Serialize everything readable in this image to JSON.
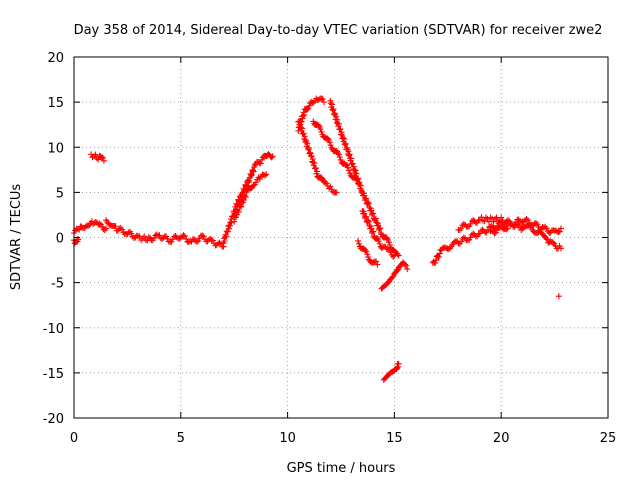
{
  "chart_data": {
    "type": "scatter",
    "title": "Day 358 of 2014, Sidereal Day-to-day VTEC variation (SDTVAR) for receiver zwe2",
    "xlabel": "GPS time / hours",
    "ylabel": "SDTVAR / TECUs",
    "xlim": [
      0,
      25
    ],
    "ylim": [
      -20,
      20
    ],
    "x_ticks": [
      0,
      5,
      10,
      15,
      20,
      25
    ],
    "y_ticks": [
      -20,
      -15,
      -10,
      -5,
      0,
      5,
      10,
      15,
      20
    ],
    "grid": true,
    "marker": "+",
    "series": [
      {
        "name": "SDTVAR",
        "color": "#ff0000",
        "segments": [
          {
            "x": [
              0.0,
              0.3,
              0.6,
              0.9,
              1.2,
              1.5
            ],
            "y": [
              0.5,
              1.0,
              1.5,
              1.6,
              1.3,
              1.0
            ]
          },
          {
            "x": [
              0.0,
              0.1,
              0.2
            ],
            "y": [
              -0.3,
              -0.6,
              -0.2
            ]
          },
          {
            "x": [
              0.8,
              1.0,
              1.2,
              1.4
            ],
            "y": [
              9.2,
              9.0,
              8.8,
              8.5
            ]
          },
          {
            "x": [
              1.5,
              2.0,
              2.5,
              3.0,
              3.5,
              4.0,
              4.5,
              5.0,
              5.5,
              6.0,
              6.5,
              7.0
            ],
            "y": [
              2.0,
              1.0,
              0.5,
              0.0,
              -0.2,
              0.2,
              -0.3,
              0.2,
              -0.5,
              0.0,
              -0.5,
              -1.0
            ]
          },
          {
            "x": [
              7.0,
              7.3,
              7.6,
              7.9,
              8.2,
              8.5,
              8.8,
              9.1,
              9.3
            ],
            "y": [
              -0.5,
              1.5,
              3.5,
              5.0,
              6.5,
              8.0,
              8.5,
              9.5,
              9.0
            ]
          },
          {
            "x": [
              7.5,
              7.8,
              8.1,
              8.4,
              8.7,
              9.0
            ],
            "y": [
              2.0,
              3.5,
              5.0,
              6.0,
              6.5,
              7.0
            ]
          },
          {
            "x": [
              10.5,
              10.8,
              11.1,
              11.4,
              11.7
            ],
            "y": [
              12.0,
              14.0,
              15.0,
              15.5,
              15.0
            ]
          },
          {
            "x": [
              10.5,
              10.8,
              11.1,
              11.4,
              11.7,
              12.0,
              12.3
            ],
            "y": [
              13.0,
              11.0,
              9.0,
              7.0,
              6.0,
              5.5,
              5.0
            ]
          },
          {
            "x": [
              11.2,
              11.5,
              11.8,
              12.1,
              12.4,
              12.7,
              13.0,
              13.3
            ],
            "y": [
              13.0,
              12.0,
              11.0,
              10.0,
              9.0,
              8.0,
              7.0,
              6.0
            ]
          },
          {
            "x": [
              12.0,
              12.3,
              12.6,
              12.9,
              13.2,
              13.5,
              13.8,
              14.1,
              14.4,
              14.7,
              15.0,
              15.2
            ],
            "y": [
              15.0,
              13.0,
              11.0,
              9.0,
              7.0,
              5.0,
              3.5,
              2.0,
              0.5,
              -0.5,
              -1.5,
              -2.0
            ]
          },
          {
            "x": [
              13.5,
              13.8,
              14.1,
              14.4,
              14.7,
              15.0
            ],
            "y": [
              3.0,
              1.5,
              0.0,
              -1.0,
              -1.5,
              -2.0
            ]
          },
          {
            "x": [
              13.3,
              13.6,
              13.9,
              14.2
            ],
            "y": [
              -0.5,
              -1.5,
              -2.5,
              -3.0
            ]
          },
          {
            "x": [
              14.4,
              14.6,
              14.8,
              15.0,
              15.2
            ],
            "y": [
              -5.5,
              -5.0,
              -4.5,
              -4.0,
              -3.5
            ]
          },
          {
            "x": [
              15.0,
              15.2,
              15.4,
              15.6
            ],
            "y": [
              -4.0,
              -3.5,
              -3.0,
              -3.5
            ]
          },
          {
            "x": [
              14.5,
              14.7,
              14.9,
              15.1,
              15.2
            ],
            "y": [
              -16.0,
              -15.5,
              -15.0,
              -14.5,
              -14.0
            ]
          },
          {
            "x": [
              16.8,
              17.2,
              17.6,
              18.0,
              18.5,
              19.0,
              19.5,
              20.0,
              20.3
            ],
            "y": [
              -3.0,
              -1.5,
              -1.0,
              -0.5,
              0.0,
              0.5,
              1.0,
              1.5,
              1.0
            ]
          },
          {
            "x": [
              18.0,
              18.5,
              19.0,
              19.5,
              20.0,
              20.5,
              21.0
            ],
            "y": [
              1.0,
              1.5,
              2.0,
              2.0,
              2.0,
              1.5,
              1.0
            ]
          },
          {
            "x": [
              19.5,
              20.0,
              20.5,
              21.0,
              21.5,
              22.0,
              22.5,
              22.8
            ],
            "y": [
              0.5,
              1.0,
              1.5,
              2.0,
              1.5,
              1.0,
              0.5,
              1.0
            ]
          },
          {
            "x": [
              21.0,
              21.4,
              21.8,
              22.2,
              22.6,
              22.8
            ],
            "y": [
              1.5,
              1.0,
              0.5,
              -0.5,
              -1.0,
              -1.2
            ]
          },
          {
            "x": [
              22.7
            ],
            "y": [
              -6.5
            ]
          }
        ]
      }
    ]
  }
}
